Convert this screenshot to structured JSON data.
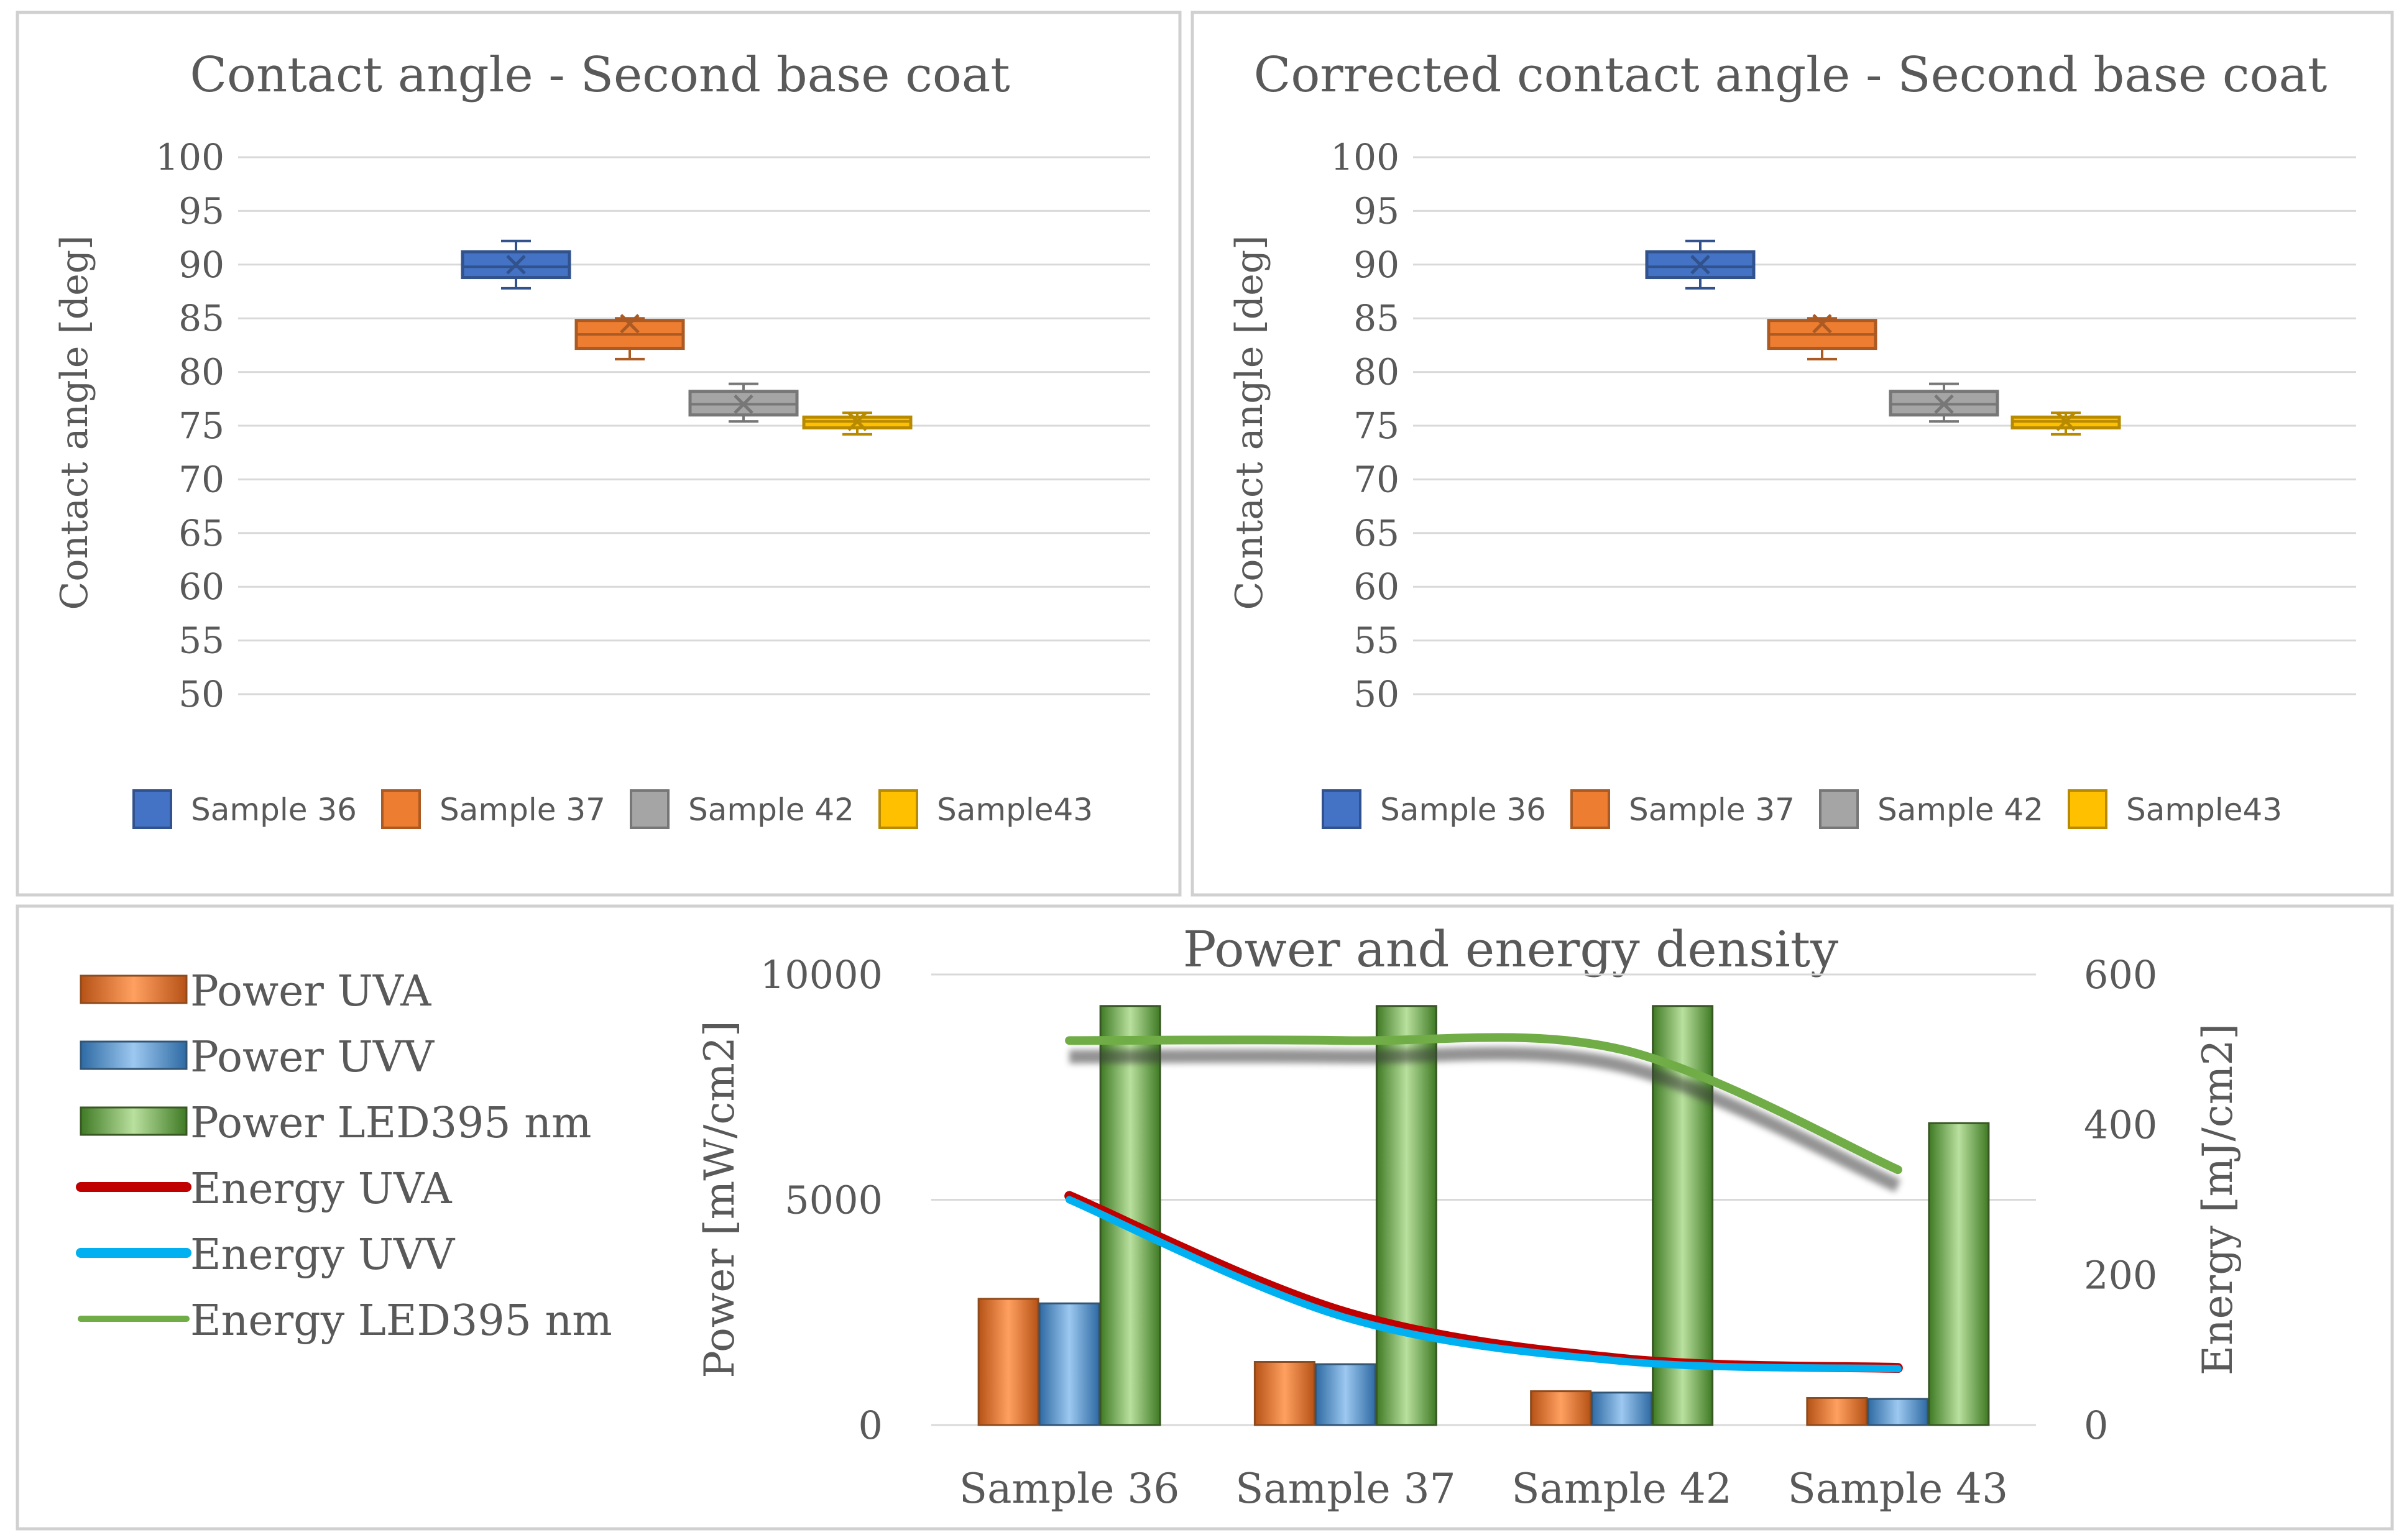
{
  "colors": {
    "sample36": "#4472c4",
    "sample37": "#ed7d31",
    "sample42": "#a5a5a5",
    "sample43": "#ffc000",
    "uva_bar": "#ed7d31",
    "uvv_bar": "#5b9bd5",
    "led_bar": "#70ad47",
    "energy_uva": "#c00000",
    "energy_uvv": "#00b0f0",
    "energy_led": "#70ad47",
    "gridline": "#d9d9d9",
    "frame": "#d0d0d0"
  },
  "chart_data": [
    {
      "type": "box",
      "title": "Contact angle - Second base coat",
      "ylabel": "Contact angle [deg]",
      "xlabel": "",
      "ylim": [
        50,
        100
      ],
      "yticks": [
        "100",
        "95",
        "90",
        "85",
        "80",
        "75",
        "70",
        "65",
        "60",
        "55",
        "50"
      ],
      "legend_position": "bottom",
      "series": [
        {
          "name": "Sample 36",
          "min": 87.8,
          "q1": 88.8,
          "median": 89.8,
          "q3": 91.2,
          "max": 92.2,
          "mean": 90.0
        },
        {
          "name": "Sample 37",
          "min": 81.2,
          "q1": 82.2,
          "median": 83.5,
          "q3": 84.8,
          "max": 85.0,
          "mean": 84.5
        },
        {
          "name": "Sample 42",
          "min": 75.4,
          "q1": 76.0,
          "median": 77.0,
          "q3": 78.2,
          "max": 78.9,
          "mean": 77.0
        },
        {
          "name": "Sample43",
          "min": 74.2,
          "q1": 74.8,
          "median": 75.4,
          "q3": 75.8,
          "max": 76.2,
          "mean": 75.4
        }
      ]
    },
    {
      "type": "box",
      "title": "Corrected contact angle - Second base coat",
      "ylabel": "Contact angle [deg]",
      "xlabel": "",
      "ylim": [
        50,
        100
      ],
      "yticks": [
        "100",
        "95",
        "90",
        "85",
        "80",
        "75",
        "70",
        "65",
        "60",
        "55",
        "50"
      ],
      "legend_position": "bottom",
      "series": [
        {
          "name": "Sample 36",
          "min": 87.8,
          "q1": 88.8,
          "median": 89.8,
          "q3": 91.2,
          "max": 92.2,
          "mean": 90.0
        },
        {
          "name": "Sample 37",
          "min": 81.2,
          "q1": 82.2,
          "median": 83.5,
          "q3": 84.8,
          "max": 85.0,
          "mean": 84.5
        },
        {
          "name": "Sample 42",
          "min": 75.4,
          "q1": 76.0,
          "median": 77.0,
          "q3": 78.2,
          "max": 78.9,
          "mean": 77.0
        },
        {
          "name": "Sample43",
          "min": 74.2,
          "q1": 74.8,
          "median": 75.4,
          "q3": 75.8,
          "max": 76.2,
          "mean": 75.4
        }
      ]
    },
    {
      "type": "bar+line",
      "title": "Power and energy density",
      "categories": [
        "Sample 36",
        "Sample 37",
        "Sample 42",
        "Sample 43"
      ],
      "ylabel": "Power [mW/cm2]",
      "y2label": "Energy [mJ/cm2]",
      "ylim": [
        0,
        10000
      ],
      "y2lim": [
        0,
        600
      ],
      "yticks": [
        0,
        5000,
        10000
      ],
      "y2ticks": [
        0,
        200,
        400,
        600
      ],
      "legend_position": "left",
      "series": [
        {
          "name": "Power UVA",
          "kind": "bar",
          "axis": "left",
          "values": [
            2800,
            1400,
            750,
            600
          ]
        },
        {
          "name": "Power UVV",
          "kind": "bar",
          "axis": "left",
          "values": [
            2700,
            1350,
            720,
            580
          ]
        },
        {
          "name": "Power LED395 nm",
          "kind": "bar",
          "axis": "left",
          "values": [
            9300,
            9300,
            9300,
            6700
          ]
        },
        {
          "name": "Energy UVA",
          "kind": "line",
          "axis": "right",
          "values": [
            305,
            150,
            88,
            76
          ]
        },
        {
          "name": "Energy UVV",
          "kind": "line",
          "axis": "right",
          "values": [
            300,
            143,
            85,
            75
          ]
        },
        {
          "name": "Energy LED395 nm",
          "kind": "line",
          "axis": "right",
          "values": [
            512,
            512,
            500,
            340
          ]
        }
      ]
    }
  ]
}
